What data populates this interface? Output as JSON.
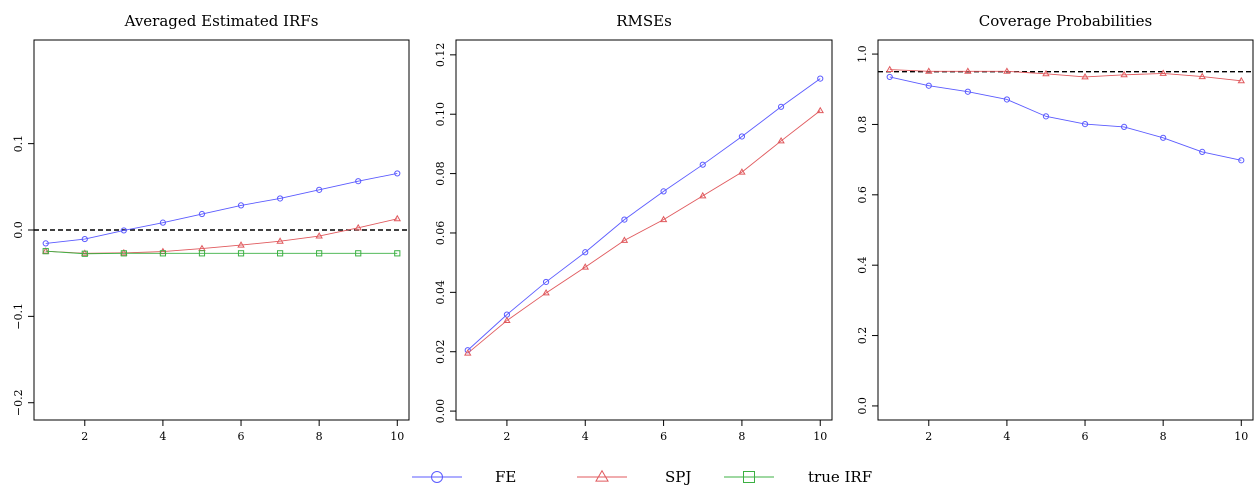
{
  "colors": {
    "FE": "#5b5bff",
    "SPJ": "#e0595d",
    "true IRF": "#3cb043",
    "reference": "#000000"
  },
  "legend": [
    {
      "name": "FE",
      "marker": "circle"
    },
    {
      "name": "SPJ",
      "marker": "triangle"
    },
    {
      "name": "true IRF",
      "marker": "square"
    }
  ],
  "chart_data": [
    {
      "type": "line",
      "title": "Averaged Estimated IRFs",
      "xlabel": "",
      "ylabel": "",
      "xlim": [
        0.7,
        10.3
      ],
      "ylim": [
        -0.22,
        0.22
      ],
      "xticks": [
        2,
        4,
        6,
        8,
        10
      ],
      "yticks": [
        -0.2,
        -0.1,
        0.0,
        0.1
      ],
      "ytick_labels": [
        "−0.2",
        "−0.1",
        "0.0",
        "0.1"
      ],
      "reference_line": 0.0,
      "x": [
        1,
        2,
        3,
        4,
        5,
        6,
        7,
        8,
        9,
        10
      ],
      "series": [
        {
          "name": "FE",
          "marker": "circle",
          "values": [
            -0.0155,
            -0.0105,
            -0.0005,
            0.0085,
            0.0185,
            0.0285,
            0.0365,
            0.0465,
            0.0565,
            0.0655
          ]
        },
        {
          "name": "SPJ",
          "marker": "triangle",
          "values": [
            -0.0245,
            -0.027,
            -0.0265,
            -0.025,
            -0.0215,
            -0.0175,
            -0.013,
            -0.007,
            0.0025,
            0.013
          ]
        },
        {
          "name": "true IRF",
          "marker": "square",
          "values": [
            -0.0245,
            -0.0275,
            -0.027,
            -0.027,
            -0.027,
            -0.027,
            -0.027,
            -0.027,
            -0.027,
            -0.027
          ]
        }
      ]
    },
    {
      "type": "line",
      "title": "RMSEs",
      "xlabel": "",
      "ylabel": "",
      "xlim": [
        0.7,
        10.3
      ],
      "ylim": [
        -0.003,
        0.125
      ],
      "xticks": [
        2,
        4,
        6,
        8,
        10
      ],
      "yticks": [
        0.0,
        0.02,
        0.04,
        0.06,
        0.08,
        0.1,
        0.12
      ],
      "ytick_labels": [
        "0.00",
        "0.02",
        "0.04",
        "0.06",
        "0.08",
        "0.10",
        "0.12"
      ],
      "x": [
        1,
        2,
        3,
        4,
        5,
        6,
        7,
        8,
        9,
        10
      ],
      "series": [
        {
          "name": "FE",
          "marker": "circle",
          "values": [
            0.0205,
            0.0325,
            0.0435,
            0.0535,
            0.0645,
            0.074,
            0.083,
            0.0925,
            0.1025,
            0.112
          ]
        },
        {
          "name": "SPJ",
          "marker": "triangle",
          "values": [
            0.0195,
            0.0305,
            0.0398,
            0.0485,
            0.0575,
            0.0645,
            0.0725,
            0.0805,
            0.091,
            0.1012
          ]
        }
      ]
    },
    {
      "type": "line",
      "title": "Coverage Probabilities",
      "xlabel": "",
      "ylabel": "",
      "xlim": [
        0.7,
        10.3
      ],
      "ylim": [
        -0.04,
        1.04
      ],
      "xticks": [
        2,
        4,
        6,
        8,
        10
      ],
      "yticks": [
        0.0,
        0.2,
        0.4,
        0.6,
        0.8,
        1.0
      ],
      "ytick_labels": [
        "0.0",
        "0.2",
        "0.4",
        "0.6",
        "0.8",
        "1.0"
      ],
      "reference_line": 0.95,
      "x": [
        1,
        2,
        3,
        4,
        5,
        6,
        7,
        8,
        9,
        10
      ],
      "series": [
        {
          "name": "FE",
          "marker": "circle",
          "values": [
            0.935,
            0.91,
            0.893,
            0.871,
            0.823,
            0.801,
            0.793,
            0.762,
            0.722,
            0.698
          ]
        },
        {
          "name": "SPJ",
          "marker": "triangle",
          "values": [
            0.956,
            0.951,
            0.951,
            0.951,
            0.944,
            0.935,
            0.941,
            0.945,
            0.936,
            0.924
          ]
        }
      ]
    }
  ]
}
